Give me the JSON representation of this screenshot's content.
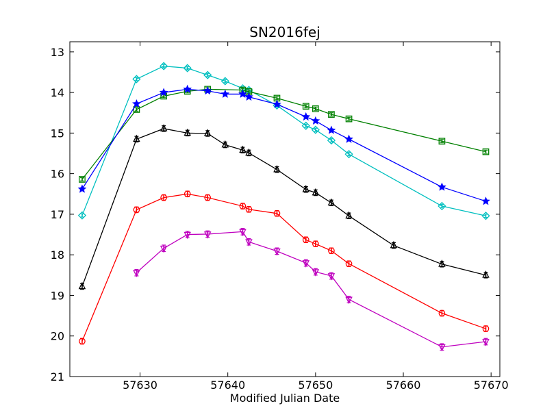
{
  "chart_data": {
    "type": "line",
    "title": "SN2016fej",
    "xlabel": "Modified Julian Date",
    "ylabel": "",
    "xlim": [
      57622,
      57671
    ],
    "ylim": [
      21,
      12.75
    ],
    "y_inverted": true,
    "grid": false,
    "legend": "none",
    "xticks": [
      57630,
      57640,
      57650,
      57660,
      57670
    ],
    "yticks": [
      13,
      14,
      15,
      16,
      17,
      18,
      19,
      20,
      21
    ],
    "series": [
      {
        "color": "#00bfbf",
        "marker": "diamond",
        "err": 0.04,
        "x": [
          57623.4,
          57629.6,
          57632.7,
          57635.4,
          57637.7,
          57639.7,
          57641.7,
          57642.4,
          57645.6,
          57648.9,
          57650.0,
          57651.8,
          57653.8,
          57664.4,
          57669.4
        ],
        "y": [
          17.03,
          13.67,
          13.35,
          13.4,
          13.57,
          13.72,
          13.9,
          13.94,
          14.32,
          14.82,
          14.92,
          15.18,
          15.52,
          16.8,
          17.04
        ]
      },
      {
        "color": "#008000",
        "marker": "square",
        "err": 0.04,
        "x": [
          57623.4,
          57629.6,
          57632.7,
          57635.4,
          57637.7,
          57641.7,
          57642.4,
          57645.6,
          57648.9,
          57650.0,
          57651.8,
          57653.8,
          57664.4,
          57669.4
        ],
        "y": [
          16.14,
          14.42,
          14.09,
          13.97,
          13.92,
          13.94,
          13.98,
          14.14,
          14.34,
          14.4,
          14.54,
          14.65,
          15.2,
          15.46
        ]
      },
      {
        "color": "#0000ff",
        "marker": "star",
        "err": 0.03,
        "x": [
          57623.4,
          57629.6,
          57632.7,
          57635.4,
          57637.7,
          57639.7,
          57641.7,
          57642.4,
          57645.6,
          57648.9,
          57650.0,
          57651.8,
          57653.8,
          57664.4,
          57669.4
        ],
        "y": [
          16.38,
          14.28,
          14.0,
          13.92,
          13.96,
          14.04,
          14.04,
          14.11,
          14.29,
          14.6,
          14.7,
          14.93,
          15.15,
          16.33,
          16.68
        ]
      },
      {
        "color": "#000000",
        "marker": "triangle-up",
        "err": 0.07,
        "x": [
          57623.4,
          57629.6,
          57632.7,
          57635.4,
          57637.7,
          57639.7,
          57641.7,
          57642.4,
          57645.6,
          57648.9,
          57650.0,
          57651.8,
          57653.8,
          57658.9,
          57664.4,
          57669.4
        ],
        "y": [
          18.78,
          15.15,
          14.89,
          15.0,
          15.01,
          15.29,
          15.42,
          15.49,
          15.9,
          16.39,
          16.47,
          16.72,
          17.04,
          17.77,
          18.23,
          18.5
        ]
      },
      {
        "color": "#ff0000",
        "marker": "circle",
        "err": 0.07,
        "x": [
          57623.4,
          57629.6,
          57632.7,
          57635.4,
          57637.7,
          57641.7,
          57642.4,
          57645.6,
          57648.9,
          57650.0,
          57651.8,
          57653.8,
          57664.4,
          57669.4
        ],
        "y": [
          20.13,
          16.89,
          16.59,
          16.5,
          16.59,
          16.8,
          16.88,
          16.98,
          17.63,
          17.73,
          17.9,
          18.22,
          19.44,
          19.82
        ]
      },
      {
        "color": "#bf00bf",
        "marker": "triangle-down",
        "err": 0.08,
        "x": [
          57629.6,
          57632.7,
          57635.4,
          57637.7,
          57641.7,
          57642.4,
          57645.6,
          57648.9,
          57650.0,
          57651.8,
          57653.8,
          57664.4,
          57669.4
        ],
        "y": [
          18.44,
          17.84,
          17.5,
          17.49,
          17.43,
          17.68,
          17.91,
          18.2,
          18.42,
          18.52,
          19.1,
          20.27,
          20.14
        ]
      }
    ]
  }
}
